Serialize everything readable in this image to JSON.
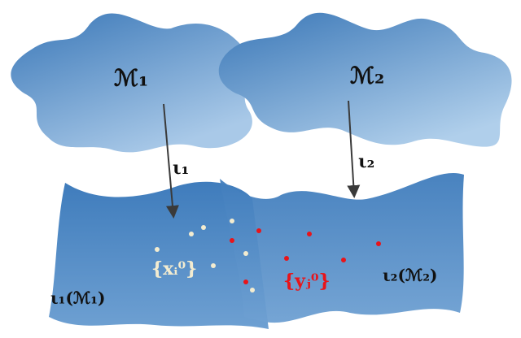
{
  "labels": {
    "manifold_1": "ℳ₁",
    "manifold_2": "ℳ₂",
    "map_1": "ι₁",
    "map_2": "ι₂",
    "set_x": "{xᵢ⁰}",
    "set_y": "{yⱼ⁰}",
    "image_1": "ι₁(ℳ₁)",
    "image_2": "ι₂(ℳ₂)"
  }
}
